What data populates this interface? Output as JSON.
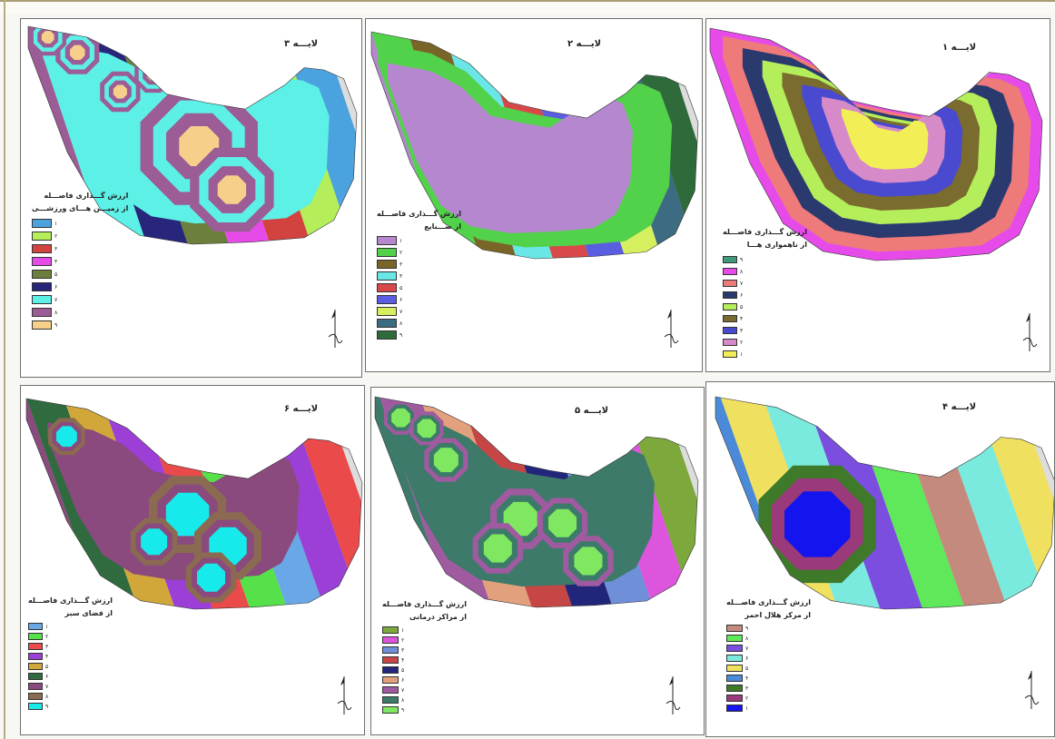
{
  "panels": [
    {
      "id": "layer3",
      "title": "لایـــه ۳",
      "legend_title_1": "ارزش گـــذاری فاصـــله",
      "legend_title_2": "از زمیـــن هـــای ورزشـــی",
      "legend": [
        {
          "label": "۱",
          "color": "#4aa3df"
        },
        {
          "label": "۲",
          "color": "#b4ee5a"
        },
        {
          "label": "۳",
          "color": "#d2433f"
        },
        {
          "label": "۴",
          "color": "#e64bea"
        },
        {
          "label": "۵",
          "color": "#6d7f3c"
        },
        {
          "label": "۶",
          "color": "#27267a"
        },
        {
          "label": "۷",
          "color": "#5cf0e6"
        },
        {
          "label": "۸",
          "color": "#9c5c96"
        },
        {
          "label": "۹",
          "color": "#f6d08b"
        }
      ]
    },
    {
      "id": "layer2",
      "title": "لایـــه ۲",
      "legend_title_1": "ارزش گـــذاری فاصـــله",
      "legend_title_2": "از صـــنایع",
      "legend": [
        {
          "label": "۱",
          "color": "#b487cf"
        },
        {
          "label": "۲",
          "color": "#52d14a"
        },
        {
          "label": "۳",
          "color": "#7a6528"
        },
        {
          "label": "۴",
          "color": "#6be6e6"
        },
        {
          "label": "۵",
          "color": "#d94848"
        },
        {
          "label": "۶",
          "color": "#5a5ee0"
        },
        {
          "label": "۷",
          "color": "#d5ef5e"
        },
        {
          "label": "۸",
          "color": "#3c6b82"
        },
        {
          "label": "۹",
          "color": "#2f6b3a"
        }
      ]
    },
    {
      "id": "layer1",
      "title": "لایـــه ۱",
      "legend_title_1": "ارزش گـــذاری فاصـــله",
      "legend_title_2": "از ناهمواری هـــا",
      "legend": [
        {
          "label": "۹",
          "color": "#3f9a7a"
        },
        {
          "label": "۸",
          "color": "#e64bea"
        },
        {
          "label": "۷",
          "color": "#ef7a7a"
        },
        {
          "label": "۶",
          "color": "#2a3a6e"
        },
        {
          "label": "۵",
          "color": "#b4ee5a"
        },
        {
          "label": "۴",
          "color": "#7a6b2e"
        },
        {
          "label": "۳",
          "color": "#4a4ad0"
        },
        {
          "label": "۲",
          "color": "#d68ac8"
        },
        {
          "label": "۱",
          "color": "#f2ef56"
        }
      ]
    },
    {
      "id": "layer6",
      "title": "لایـــه ۶",
      "legend_title_1": "ارزش گـــذاری فاصـــله",
      "legend_title_2": "از فضای سبز",
      "legend": [
        {
          "label": "۱",
          "color": "#6aa7e6"
        },
        {
          "label": "۲",
          "color": "#56e04a"
        },
        {
          "label": "۳",
          "color": "#ea4a4a"
        },
        {
          "label": "۴",
          "color": "#9b3fd6"
        },
        {
          "label": "۵",
          "color": "#d2a73a"
        },
        {
          "label": "۶",
          "color": "#2f6b3e"
        },
        {
          "label": "۷",
          "color": "#8a4a7e"
        },
        {
          "label": "۸",
          "color": "#8b6a52"
        },
        {
          "label": "۹",
          "color": "#17eaea"
        }
      ]
    },
    {
      "id": "layer5",
      "title": "لایـــه ۵",
      "legend_title_1": "ارزش گـــذاری فاصـــله",
      "legend_title_2": "از مراکز درمانی",
      "legend": [
        {
          "label": "۱",
          "color": "#7da83c"
        },
        {
          "label": "۲",
          "color": "#dc55dc"
        },
        {
          "label": "۳",
          "color": "#6f8fd8"
        },
        {
          "label": "۴",
          "color": "#c64646"
        },
        {
          "label": "۵",
          "color": "#22267a"
        },
        {
          "label": "۶",
          "color": "#e3a07c"
        },
        {
          "label": "۷",
          "color": "#a05aa0"
        },
        {
          "label": "۸",
          "color": "#3d7a6a"
        },
        {
          "label": "۹",
          "color": "#7fe860"
        }
      ]
    },
    {
      "id": "layer4",
      "title": "لایـــه ۴",
      "legend_title_1": "ارزش گـــذاری فاصـــله",
      "legend_title_2": "از مرکز هلال احمر",
      "legend": [
        {
          "label": "۹",
          "color": "#c48a7e"
        },
        {
          "label": "۸",
          "color": "#5fe85a"
        },
        {
          "label": "۷",
          "color": "#7b4ee0"
        },
        {
          "label": "۶",
          "color": "#7aeadf"
        },
        {
          "label": "۵",
          "color": "#f0e060"
        },
        {
          "label": "۴",
          "color": "#4a8ad8"
        },
        {
          "label": "۳",
          "color": "#3e7a2a"
        },
        {
          "label": "۲",
          "color": "#9a3a7a"
        },
        {
          "label": "۱",
          "color": "#1414ee"
        }
      ]
    }
  ]
}
